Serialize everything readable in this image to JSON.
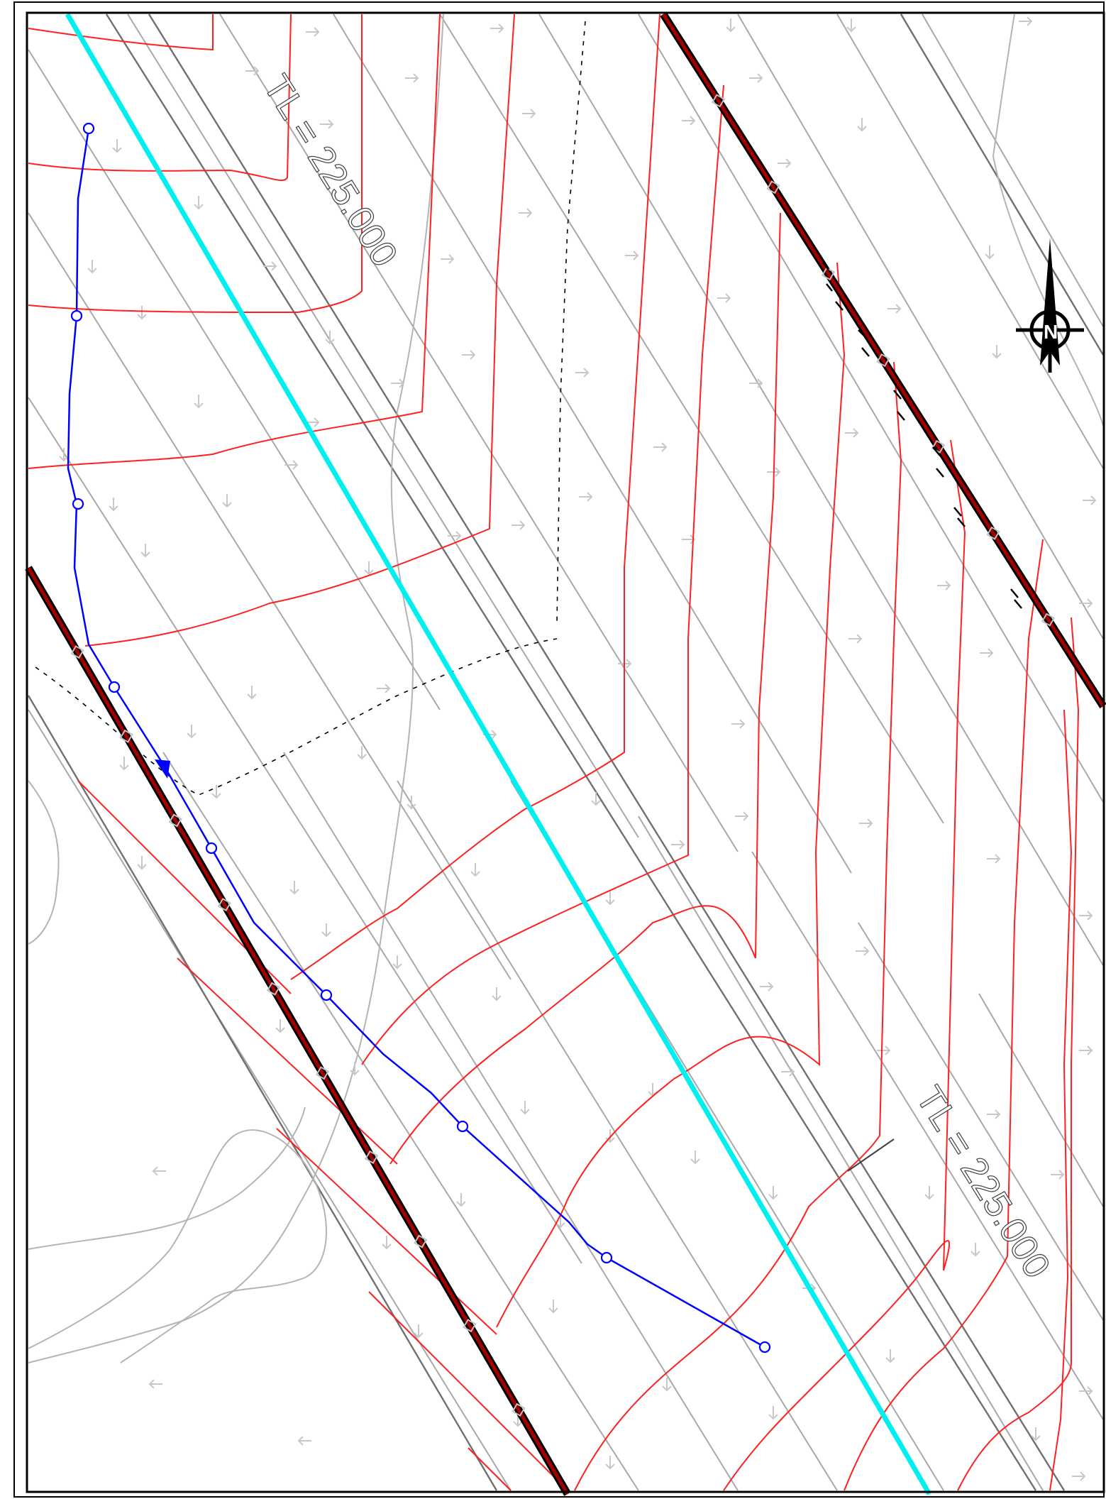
{
  "drawing": {
    "label_text_upper": "TL = 225.000",
    "label_text_lower": "TL = 225.000",
    "north_arrow_letter": "N"
  },
  "colors": {
    "background": "#ffffff",
    "border": "#000000",
    "contour": "#ff0000",
    "alignment": "#00ffff",
    "pipe": "#0000ff",
    "road_edge": "#000000",
    "road_fill": "#b00000",
    "grid_gray": "#a0a0a0",
    "flow_arrow": "#c8c8c8"
  },
  "icons": {
    "north_arrow": "north-arrow-icon",
    "flow_arrow": "flow-direction-arrow-icon",
    "pipe_node": "pipe-node-circle-icon"
  }
}
